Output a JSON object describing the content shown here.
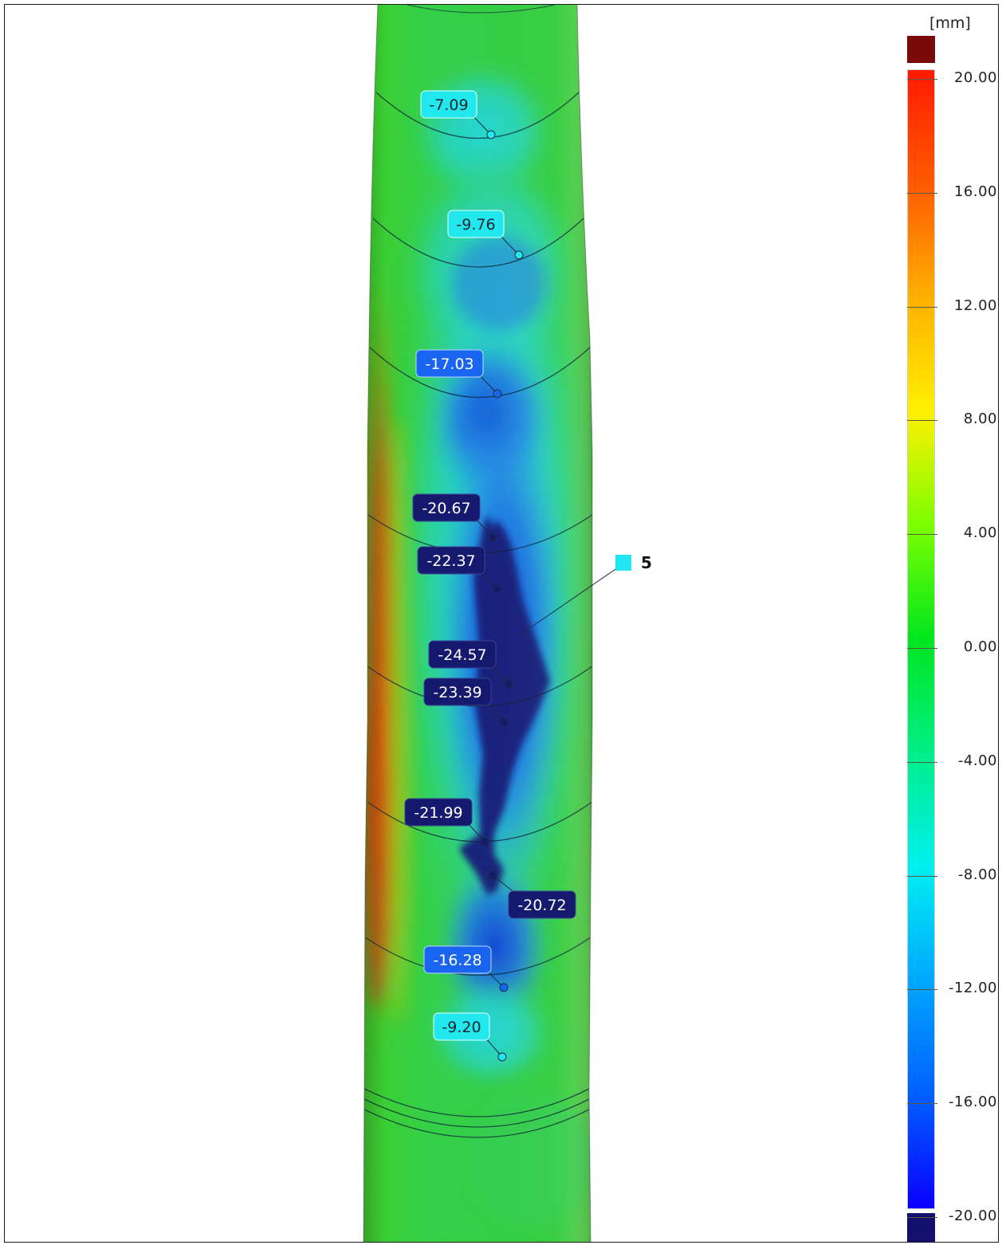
{
  "legend": {
    "unit": "[mm]",
    "max_swatch_color": "#7a0a0a",
    "min_swatch_color": "#13106e",
    "ticks": [
      "20.00",
      "16.00",
      "12.00",
      "8.00",
      "4.00",
      "0.00",
      "-4.00",
      "-8.00",
      "-12.00",
      "-16.00",
      "-20.00"
    ],
    "gradient": [
      {
        "value": 20,
        "color": "#ff1a00"
      },
      {
        "value": 16,
        "color": "#ff5a00"
      },
      {
        "value": 12,
        "color": "#ffb000"
      },
      {
        "value": 8,
        "color": "#fff000"
      },
      {
        "value": 4,
        "color": "#7cff00"
      },
      {
        "value": 0,
        "color": "#00e61e"
      },
      {
        "value": -4,
        "color": "#00ee88"
      },
      {
        "value": -8,
        "color": "#00f0f0"
      },
      {
        "value": -12,
        "color": "#00a8ff"
      },
      {
        "value": -16,
        "color": "#0060ff"
      },
      {
        "value": -20,
        "color": "#0a00ff"
      }
    ]
  },
  "group_marker": {
    "label": "5",
    "color": "#1ee6f0"
  },
  "measurements": [
    {
      "value": "-7.09",
      "theme": "light"
    },
    {
      "value": "-9.76",
      "theme": "light"
    },
    {
      "value": "-17.03",
      "theme": "mid"
    },
    {
      "value": "-20.67",
      "theme": "dark"
    },
    {
      "value": "-22.37",
      "theme": "dark"
    },
    {
      "value": "-24.57",
      "theme": "dark"
    },
    {
      "value": "-23.39",
      "theme": "dark"
    },
    {
      "value": "-21.99",
      "theme": "dark"
    },
    {
      "value": "-20.72",
      "theme": "dark"
    },
    {
      "value": "-16.28",
      "theme": "mid"
    },
    {
      "value": "-9.20",
      "theme": "light"
    }
  ]
}
